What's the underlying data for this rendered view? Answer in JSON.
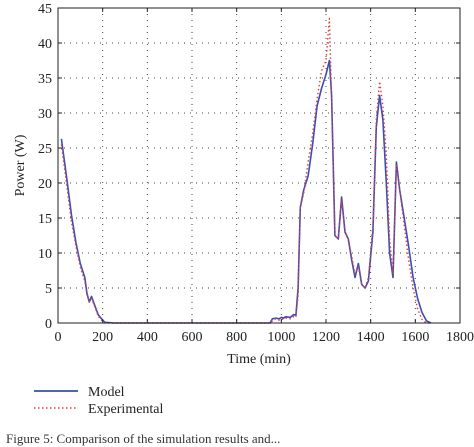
{
  "chart_data": {
    "type": "line",
    "title": "",
    "xlabel": "Time (min)",
    "ylabel": "Power (W)",
    "xlim": [
      0,
      1800
    ],
    "ylim": [
      0,
      45
    ],
    "xticks": [
      0,
      200,
      400,
      600,
      800,
      1000,
      1200,
      1400,
      1600,
      1800
    ],
    "yticks": [
      0,
      5,
      10,
      15,
      20,
      25,
      30,
      35,
      40,
      45
    ],
    "grid": true,
    "legend_position": "bottom-left, below plot",
    "series": [
      {
        "name": "Model",
        "color": "#3a4fb5",
        "style": "solid",
        "x": [
          15,
          40,
          60,
          80,
          100,
          120,
          130,
          140,
          150,
          165,
          180,
          200,
          210,
          250,
          300,
          400,
          500,
          600,
          700,
          800,
          900,
          950,
          960,
          975,
          990,
          1000,
          1010,
          1020,
          1040,
          1055,
          1065,
          1075,
          1085,
          1100,
          1120,
          1140,
          1160,
          1180,
          1200,
          1215,
          1225,
          1240,
          1255,
          1270,
          1285,
          1300,
          1315,
          1330,
          1345,
          1360,
          1375,
          1390,
          1410,
          1425,
          1440,
          1455,
          1470,
          1485,
          1500,
          1515,
          1530,
          1550,
          1570,
          1590,
          1610,
          1630,
          1650,
          1670
        ],
        "y": [
          26.3,
          20.5,
          15.5,
          11.5,
          8.5,
          6.5,
          4.2,
          3.0,
          3.8,
          2.5,
          1.2,
          0.4,
          0.1,
          0.0,
          0.0,
          0.0,
          0.0,
          0.0,
          0.0,
          0.0,
          0.0,
          0.0,
          0.6,
          0.7,
          0.6,
          0.8,
          0.7,
          0.9,
          0.8,
          1.2,
          1.1,
          5.0,
          16.5,
          19.0,
          21.0,
          25.5,
          31.0,
          33.5,
          35.5,
          37.5,
          32.5,
          12.5,
          12.0,
          18.0,
          13.0,
          12.0,
          9.0,
          6.5,
          8.5,
          5.5,
          5.0,
          6.0,
          13.0,
          28.0,
          32.5,
          29.0,
          20.0,
          10.0,
          6.5,
          23.0,
          19.0,
          15.0,
          11.0,
          6.5,
          3.5,
          1.5,
          0.3,
          0.0
        ]
      },
      {
        "name": "Experimental",
        "color": "#e0403a",
        "style": "dotted",
        "x": [
          15,
          40,
          60,
          80,
          100,
          120,
          130,
          140,
          150,
          165,
          180,
          200,
          210,
          250,
          300,
          400,
          500,
          600,
          700,
          800,
          900,
          950,
          960,
          975,
          990,
          1000,
          1010,
          1020,
          1040,
          1055,
          1065,
          1075,
          1085,
          1100,
          1120,
          1140,
          1160,
          1180,
          1200,
          1215,
          1225,
          1240,
          1255,
          1270,
          1285,
          1300,
          1315,
          1330,
          1345,
          1360,
          1375,
          1390,
          1410,
          1425,
          1440,
          1455,
          1470,
          1485,
          1500,
          1515,
          1530,
          1550,
          1570,
          1590,
          1610,
          1630,
          1650,
          1670
        ],
        "y": [
          25.5,
          19.5,
          14.5,
          11.0,
          8.0,
          6.0,
          4.0,
          3.0,
          3.5,
          2.3,
          1.0,
          0.2,
          0.0,
          0.0,
          0.0,
          0.0,
          0.0,
          0.0,
          0.0,
          0.0,
          0.0,
          0.0,
          0.3,
          0.6,
          0.4,
          0.6,
          0.5,
          0.7,
          0.6,
          0.9,
          0.8,
          4.0,
          16.5,
          18.5,
          23.0,
          27.0,
          32.0,
          36.0,
          37.5,
          43.5,
          32.0,
          12.5,
          12.0,
          17.5,
          13.0,
          12.0,
          9.5,
          7.0,
          8.0,
          5.5,
          5.0,
          6.5,
          14.0,
          29.0,
          34.5,
          31.0,
          24.0,
          12.0,
          7.0,
          22.5,
          19.0,
          14.0,
          9.0,
          5.0,
          2.0,
          0.5,
          0.0,
          0.0
        ]
      }
    ]
  },
  "caption": "Figure 5: Comparison of the simulation results and..."
}
